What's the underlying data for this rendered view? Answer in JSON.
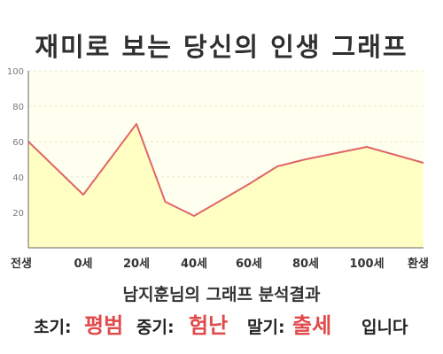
{
  "title": "재미로 보는 당신의 인생 그래프",
  "subtitle": "남지훈님의 그래프 분석결과",
  "summary": {
    "early_label": "초기:",
    "early_value": "평범",
    "middle_label": "중기:",
    "middle_value": "험난",
    "late_label": "말기:",
    "late_value": "출세",
    "ending": "입니다"
  },
  "colors": {
    "line": "#e06666",
    "fill": "#ffffc4",
    "plot_background": "#fffff0",
    "grid": "#e6e6c8",
    "highlight": "#e04a4a"
  },
  "chart_data": {
    "type": "area",
    "title": "재미로 보는 당신의 인생 그래프",
    "xlabel": "",
    "ylabel": "",
    "x_ticks": [
      "전생",
      "0세",
      "20세",
      "40세",
      "60세",
      "80세",
      "100세",
      "환생"
    ],
    "y_ticks": [
      20,
      40,
      60,
      80,
      100
    ],
    "ylim": [
      0,
      100
    ],
    "grid": true,
    "legend": "none",
    "series": [
      {
        "points": [
          {
            "x": "전생",
            "y": 60
          },
          {
            "x": "0세",
            "y": 30
          },
          {
            "x": "20세",
            "y": 70
          },
          {
            "x": "30세",
            "y": 26
          },
          {
            "x": "40세",
            "y": 18
          },
          {
            "x": "60세",
            "y": 36
          },
          {
            "x": "70세",
            "y": 46
          },
          {
            "x": "80세",
            "y": 50
          },
          {
            "x": "100세",
            "y": 57
          },
          {
            "x": "환생",
            "y": 48
          }
        ]
      }
    ]
  }
}
